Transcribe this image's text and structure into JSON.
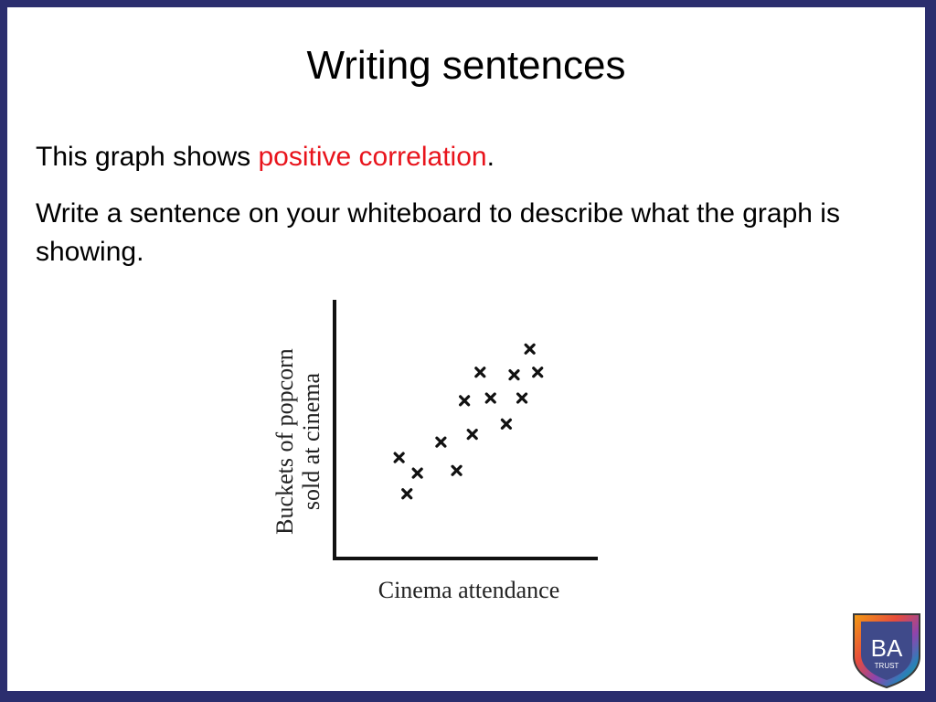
{
  "slide": {
    "title": "Writing sentences",
    "line1_prefix": "This graph shows ",
    "line1_highlight": "positive correlation",
    "line1_suffix": ".",
    "line2": "Write a sentence on your whiteboard to describe what the graph is showing.",
    "highlight_color": "#e8141c",
    "frame_color": "#2b2e6e"
  },
  "chart_data": {
    "type": "scatter",
    "title": "",
    "xlabel": "Cinema attendance",
    "ylabel_lines": [
      "Buckets of popcorn",
      "sold at cinema"
    ],
    "xlim": [
      0,
      10
    ],
    "ylim": [
      0,
      10
    ],
    "grid": false,
    "marker": "x",
    "points": [
      {
        "x": 2.4,
        "y": 3.9
      },
      {
        "x": 2.7,
        "y": 2.5
      },
      {
        "x": 3.1,
        "y": 3.3
      },
      {
        "x": 4.0,
        "y": 4.5
      },
      {
        "x": 4.6,
        "y": 3.4
      },
      {
        "x": 4.9,
        "y": 6.1
      },
      {
        "x": 5.2,
        "y": 4.8
      },
      {
        "x": 5.5,
        "y": 7.2
      },
      {
        "x": 5.9,
        "y": 6.2
      },
      {
        "x": 6.5,
        "y": 5.2
      },
      {
        "x": 6.8,
        "y": 7.1
      },
      {
        "x": 7.1,
        "y": 6.2
      },
      {
        "x": 7.4,
        "y": 8.1
      },
      {
        "x": 7.7,
        "y": 7.2
      }
    ]
  },
  "logo": {
    "letters": "BA",
    "subtitle": "TRUST",
    "icon": "shield-icon"
  }
}
